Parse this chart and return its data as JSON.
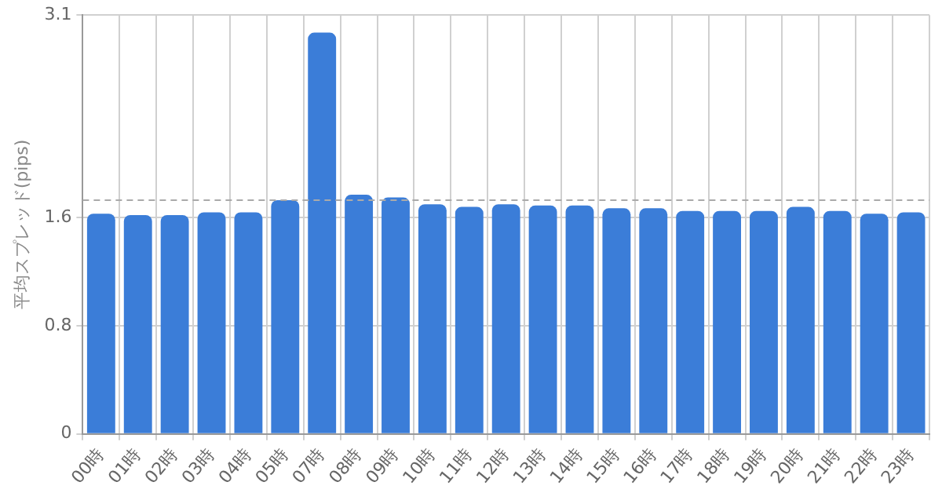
{
  "chart_data": {
    "type": "bar",
    "ylabel": "平均スプレッド(pips)",
    "categories": [
      "00時",
      "01時",
      "02時",
      "03時",
      "04時",
      "05時",
      "07時",
      "08時",
      "09時",
      "10時",
      "11時",
      "12時",
      "13時",
      "14時",
      "15時",
      "16時",
      "17時",
      "18時",
      "19時",
      "20時",
      "21時",
      "22時",
      "23時"
    ],
    "values": [
      1.63,
      1.62,
      1.62,
      1.64,
      1.64,
      1.73,
      2.97,
      1.77,
      1.75,
      1.7,
      1.68,
      1.7,
      1.69,
      1.69,
      1.67,
      1.67,
      1.65,
      1.65,
      1.65,
      1.68,
      1.65,
      1.63,
      1.64
    ],
    "color": "#3b7dd8",
    "ylim": [
      0,
      3.1
    ],
    "yticks": [
      0,
      0.8,
      1.6,
      3.1
    ],
    "ref_lines": [
      {
        "axis": "y",
        "value": 1.73,
        "line_style": "dashed",
        "color": "#aaaaaa"
      }
    ],
    "grid": true,
    "legend": false
  }
}
